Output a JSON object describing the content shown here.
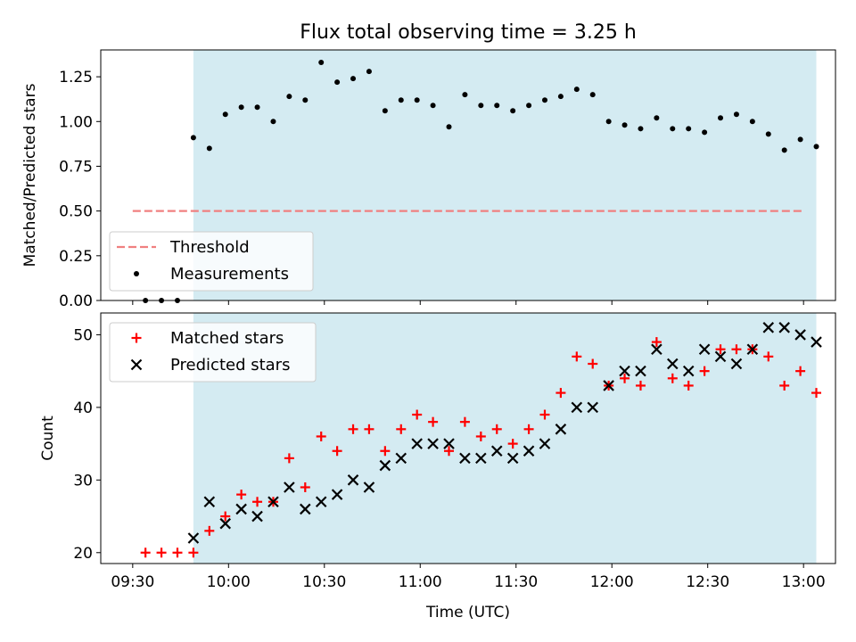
{
  "chart_data": [
    {
      "type": "scatter",
      "title": "Flux total observing time = 3.25 h",
      "xlabel": "",
      "ylabel": "Matched/Predicted stars",
      "xlim": [
        "09:20",
        "13:10"
      ],
      "ylim": [
        0,
        1.4
      ],
      "yticks": [
        "0.00",
        "0.25",
        "0.50",
        "0.75",
        "1.00",
        "1.25"
      ],
      "shaded_span": [
        "09:49",
        "13:04"
      ],
      "shade_color": "#d4ebf2",
      "grid": false,
      "legend_position": "lower-left",
      "series": [
        {
          "name": "Threshold",
          "kind": "dashed-line",
          "color": "#f08080",
          "x": [
            "09:30",
            "13:00"
          ],
          "y": [
            0.5,
            0.5
          ]
        },
        {
          "name": "Measurements",
          "kind": "dot",
          "color": "#000000",
          "x": [
            "09:34",
            "09:39",
            "09:44",
            "09:49",
            "09:54",
            "09:59",
            "10:04",
            "10:09",
            "10:14",
            "10:19",
            "10:24",
            "10:29",
            "10:34",
            "10:39",
            "10:44",
            "10:49",
            "10:54",
            "10:59",
            "11:04",
            "11:09",
            "11:14",
            "11:19",
            "11:24",
            "11:29",
            "11:34",
            "11:39",
            "11:44",
            "11:49",
            "11:54",
            "11:59",
            "12:04",
            "12:09",
            "12:14",
            "12:19",
            "12:24",
            "12:29",
            "12:34",
            "12:39",
            "12:44",
            "12:49",
            "12:54",
            "12:59",
            "13:04"
          ],
          "y": [
            0.0,
            0.0,
            0.0,
            0.91,
            0.85,
            1.04,
            1.08,
            1.08,
            1.0,
            1.14,
            1.12,
            1.33,
            1.22,
            1.24,
            1.28,
            1.06,
            1.12,
            1.12,
            1.09,
            0.97,
            1.15,
            1.09,
            1.09,
            1.06,
            1.09,
            1.12,
            1.14,
            1.18,
            1.15,
            1.0,
            0.98,
            0.96,
            1.02,
            0.96,
            0.96,
            0.94,
            1.02,
            1.04,
            1.0,
            0.93,
            0.84,
            0.9,
            0.86
          ]
        }
      ]
    },
    {
      "type": "scatter",
      "title": "",
      "xlabel": "Time (UTC)",
      "ylabel": "Count",
      "xlim": [
        "09:20",
        "13:10"
      ],
      "ylim": [
        18.5,
        53
      ],
      "yticks": [
        "20",
        "30",
        "40",
        "50"
      ],
      "xticks": [
        "09:30",
        "10:00",
        "10:30",
        "11:00",
        "11:30",
        "12:00",
        "12:30",
        "13:00"
      ],
      "shaded_span": [
        "09:49",
        "13:04"
      ],
      "shade_color": "#d4ebf2",
      "grid": false,
      "legend_position": "top-left",
      "x": [
        "09:34",
        "09:39",
        "09:44",
        "09:49",
        "09:54",
        "09:59",
        "10:04",
        "10:09",
        "10:14",
        "10:19",
        "10:24",
        "10:29",
        "10:34",
        "10:39",
        "10:44",
        "10:49",
        "10:54",
        "10:59",
        "11:04",
        "11:09",
        "11:14",
        "11:19",
        "11:24",
        "11:29",
        "11:34",
        "11:39",
        "11:44",
        "11:49",
        "11:54",
        "11:59",
        "12:04",
        "12:09",
        "12:14",
        "12:19",
        "12:24",
        "12:29",
        "12:34",
        "12:39",
        "12:44",
        "12:49",
        "12:54",
        "12:59",
        "13:04"
      ],
      "series": [
        {
          "name": "Matched stars",
          "marker": "plus",
          "color": "#ff0000",
          "values": [
            20,
            20,
            20,
            20,
            23,
            25,
            28,
            27,
            27,
            33,
            29,
            36,
            34,
            37,
            37,
            34,
            37,
            39,
            38,
            34,
            38,
            36,
            37,
            35,
            37,
            39,
            42,
            47,
            46,
            43,
            44,
            43,
            49,
            44,
            43,
            45,
            48,
            48,
            48,
            47,
            43,
            45,
            42
          ]
        },
        {
          "name": "Predicted stars",
          "marker": "x",
          "color": "#000000",
          "values": [
            null,
            null,
            null,
            22,
            27,
            24,
            26,
            25,
            27,
            29,
            26,
            27,
            28,
            30,
            29,
            32,
            33,
            35,
            35,
            35,
            33,
            33,
            34,
            33,
            34,
            35,
            37,
            40,
            40,
            43,
            45,
            45,
            48,
            46,
            45,
            48,
            47,
            46,
            48,
            51,
            51,
            50,
            49
          ]
        }
      ]
    }
  ]
}
